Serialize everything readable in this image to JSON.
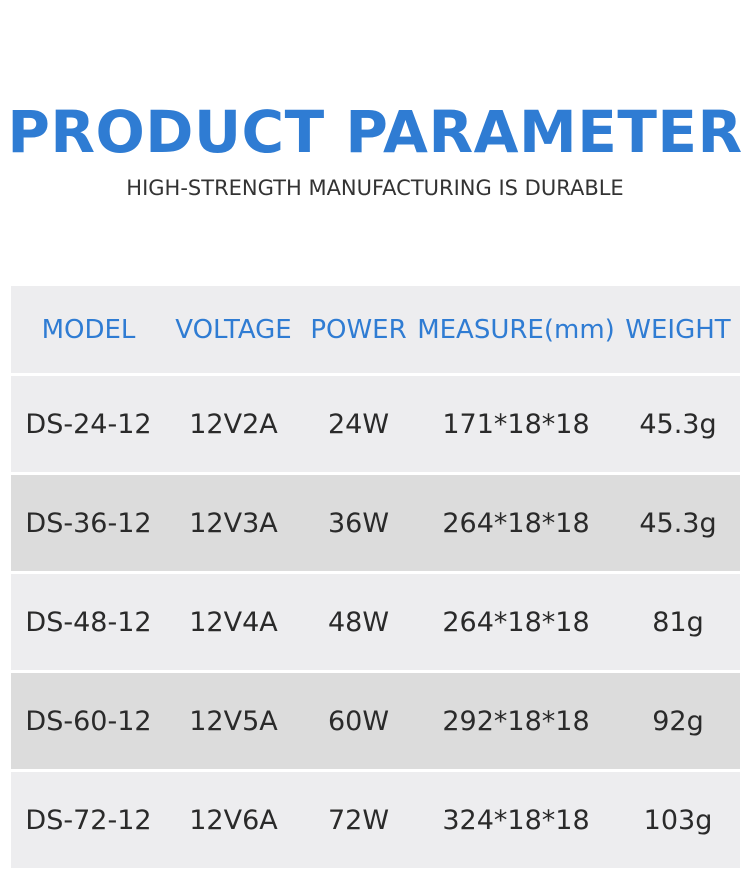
{
  "title": "PRODUCT PARAMETER",
  "subtitle": "HIGH-STRENGTH MANUFACTURING IS DURABLE",
  "table": {
    "headers": [
      "MODEL",
      "VOLTAGE",
      "POWER",
      "MEASURE(mm)",
      "WEIGHT"
    ],
    "rows": [
      [
        "DS-24-12",
        "12V2A",
        "24W",
        "171*18*18",
        "45.3g"
      ],
      [
        "DS-36-12",
        "12V3A",
        "36W",
        "264*18*18",
        "45.3g"
      ],
      [
        "DS-48-12",
        "12V4A",
        "48W",
        "264*18*18",
        "81g"
      ],
      [
        "DS-60-12",
        "12V5A",
        "60W",
        "292*18*18",
        "92g"
      ],
      [
        "DS-72-12",
        "12V6A",
        "72W",
        "324*18*18",
        "103g"
      ]
    ]
  },
  "colors": {
    "accent": "#2f7cd3",
    "row_light": "#ededef",
    "row_dark": "#dcdcdc"
  }
}
